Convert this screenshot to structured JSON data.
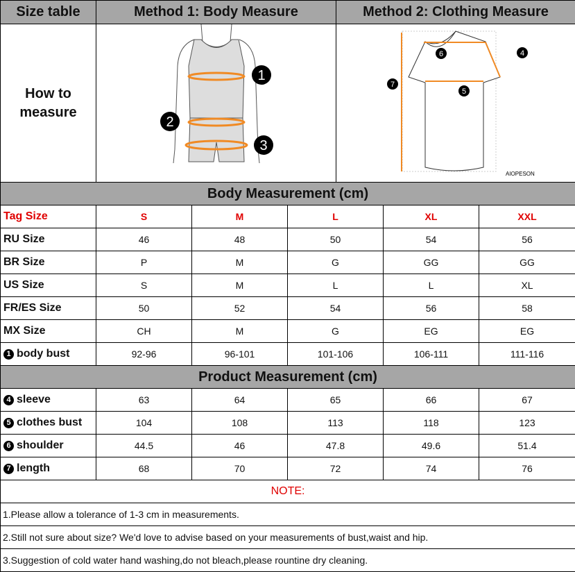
{
  "header": {
    "size_table": "Size table",
    "method1": "Method 1: Body  Measure",
    "method2": "Method 2: Clothing Measure"
  },
  "how_to": {
    "line1": "How to",
    "line2": "measure"
  },
  "body_figure": {
    "markers": [
      "1",
      "2",
      "3"
    ]
  },
  "shirt_figure": {
    "markers": [
      "6",
      "4",
      "7",
      "5"
    ],
    "brand": "AIOPESON"
  },
  "colors": {
    "header_bg": "#a6a6a6",
    "tag_red": "#e00000",
    "measure_line": "#f08a24"
  },
  "body_section": "Body Measurement (cm)",
  "tag_row": {
    "label": "Tag Size",
    "values": [
      "S",
      "M",
      "L",
      "XL",
      "XXL"
    ]
  },
  "body_rows": [
    {
      "label": "RU Size",
      "values": [
        "46",
        "48",
        "50",
        "54",
        "56"
      ]
    },
    {
      "label": "BR Size",
      "values": [
        "P",
        "M",
        "G",
        "GG",
        "GG"
      ]
    },
    {
      "label": "US Size",
      "values": [
        "S",
        "M",
        "L",
        "L",
        "XL"
      ]
    },
    {
      "label": "FR/ES Size",
      "values": [
        "50",
        "52",
        "54",
        "56",
        "58"
      ]
    },
    {
      "label": "MX Size",
      "values": [
        "CH",
        "M",
        "G",
        "EG",
        "EG"
      ]
    },
    {
      "num": "1",
      "label": "body bust",
      "values": [
        "92-96",
        "96-101",
        "101-106",
        "106-111",
        "111-116"
      ]
    }
  ],
  "product_section": "Product Measurement (cm)",
  "product_rows": [
    {
      "num": "4",
      "label": "sleeve",
      "values": [
        "63",
        "64",
        "65",
        "66",
        "67"
      ]
    },
    {
      "num": "5",
      "label": "clothes bust",
      "values": [
        "104",
        "108",
        "113",
        "118",
        "123"
      ]
    },
    {
      "num": "6",
      "label": "shoulder",
      "values": [
        "44.5",
        "46",
        "47.8",
        "49.6",
        "51.4"
      ]
    },
    {
      "num": "7",
      "label": "length",
      "values": [
        "68",
        "70",
        "72",
        "74",
        "76"
      ]
    }
  ],
  "note_title": "NOTE:",
  "notes": [
    "1.Please allow a tolerance of 1-3 cm in measurements.",
    "2.Still not sure about size? We'd love to advise based on your measurements of bust,waist and hip.",
    "3.Suggestion of cold water hand washing,do not bleach,please rountine dry cleaning."
  ]
}
